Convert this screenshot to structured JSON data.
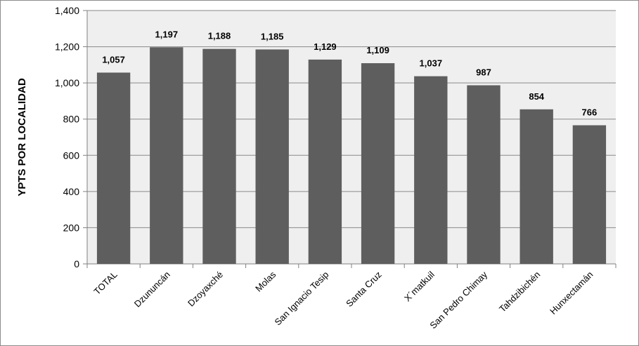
{
  "chart_data": {
    "type": "bar",
    "title": "",
    "xlabel": "",
    "ylabel": "YPTS POR LOCALIDAD",
    "categories": [
      "TOTAL",
      "Dzununcán",
      "Dzoyaxché",
      "Molas",
      "San Ignacio Tesip",
      "Santa Cruz",
      "X´matkuil",
      "San Pedro Chimay",
      "Tahdzibichén",
      "Hunxectamán"
    ],
    "values": [
      1057,
      1197,
      1188,
      1185,
      1129,
      1109,
      1037,
      987,
      854,
      766
    ],
    "data_labels": [
      "1,057",
      "1,197",
      "1,188",
      "1,185",
      "1,129",
      "1,109",
      "1,037",
      "987",
      "854",
      "766"
    ],
    "ylim": [
      0,
      1400
    ],
    "yticks": [
      0,
      200,
      400,
      600,
      800,
      1000,
      1200,
      1400
    ],
    "ytick_labels": [
      "0",
      "200",
      "400",
      "600",
      "800",
      "1,000",
      "1,200",
      "1,400"
    ],
    "grid": true,
    "legend": "none",
    "colors": {
      "bar": "#5e5e5e",
      "plot_background": "#efefef",
      "grid": "#8a8a8a",
      "axis": "#808080"
    }
  }
}
